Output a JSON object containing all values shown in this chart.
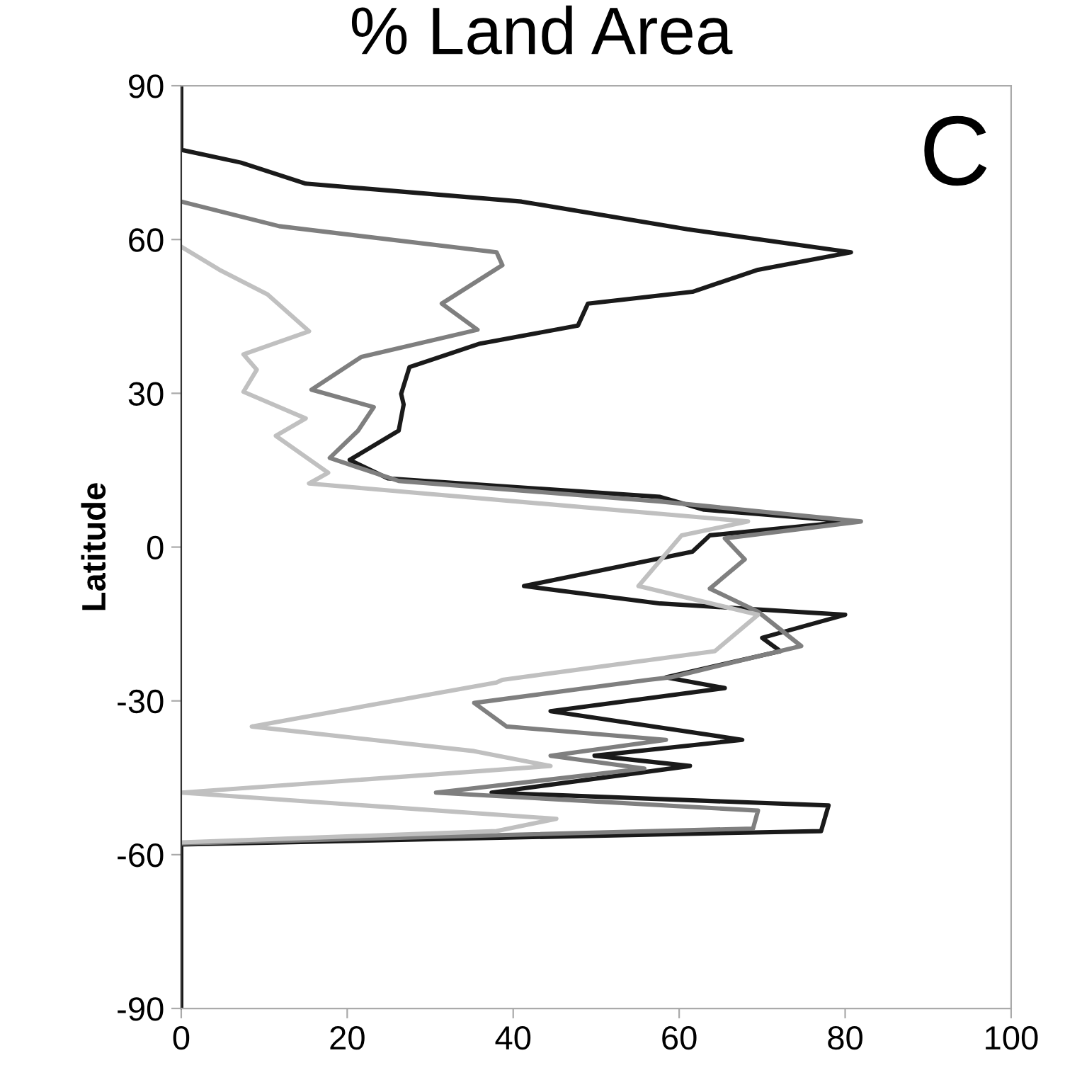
{
  "chart_data": {
    "type": "line",
    "title": "% Land Area",
    "ylabel": "Latitude",
    "annotations": [
      "C"
    ],
    "xlim": [
      0,
      100
    ],
    "xticks": [
      0,
      20,
      40,
      60,
      80,
      100
    ],
    "ylim": [
      -90,
      90
    ],
    "yticks": [
      -90,
      -60,
      -30,
      0,
      30,
      60,
      90
    ],
    "grid": false,
    "marker": "none",
    "line_style": "solid",
    "series": [
      {
        "color": "#1a1a1a",
        "x": [
          0,
          0,
          7.2,
          15,
          41,
          61,
          80.7,
          69.5,
          61.6,
          49,
          47.8,
          36,
          27.5,
          26.5,
          26.8,
          26.2,
          20.3,
          24.9,
          57.7,
          63,
          80.7,
          63.7,
          61.6,
          41.3,
          57.7,
          80,
          70,
          72.2,
          58.4,
          65.5,
          44.5,
          67.6,
          49.8,
          61.3,
          37.4,
          78,
          77.1,
          0,
          0
        ],
        "values": [
          90,
          77.5,
          75,
          70.9,
          67.4,
          62,
          57.5,
          54.1,
          49.8,
          47.5,
          43.2,
          39.7,
          35.1,
          29.9,
          27.8,
          22.7,
          17,
          13.4,
          9.8,
          7.3,
          5,
          2.3,
          -0.9,
          -7.6,
          -11,
          -13.2,
          -17.7,
          -20.3,
          -25.4,
          -27.5,
          -32,
          -37.6,
          -40.7,
          -42.7,
          -47.9,
          -50.4,
          -55.4,
          -58,
          -90
        ]
      },
      {
        "color": "#7f7f7f",
        "x": [
          0,
          11.8,
          38,
          38.7,
          31.4,
          35.7,
          21.7,
          15.7,
          23.2,
          21.3,
          17.9,
          26.2,
          57.7,
          81.9,
          65.5,
          67.9,
          63.7,
          69.5,
          74.7,
          59,
          56.3,
          35.3,
          39.2,
          58.4,
          44.5,
          55.8,
          30.7,
          69.5,
          68.9,
          0
        ],
        "values": [
          67.4,
          62.6,
          57.5,
          55,
          47.5,
          42.4,
          37.1,
          30.7,
          27.3,
          22.7,
          17.4,
          12.9,
          8.9,
          5,
          1.7,
          -2.4,
          -8.1,
          -12.6,
          -19.3,
          -25.4,
          -25.9,
          -30.4,
          -35,
          -37.6,
          -40.7,
          -43.2,
          -47.9,
          -51.4,
          -54.9,
          -57.8
        ]
      },
      {
        "color": "#c0c0c0",
        "x": [
          0,
          4.6,
          10.4,
          15.4,
          7.5,
          9.1,
          7.5,
          15,
          11.4,
          17.7,
          15.4,
          68.3,
          60.3,
          55.1,
          69.5,
          64.3,
          38.7,
          38,
          8.5,
          35.3,
          44.5,
          0,
          45.2,
          38,
          0
        ],
        "values": [
          58.6,
          54.1,
          49.3,
          42.1,
          37.6,
          34.6,
          30.3,
          25.1,
          21.7,
          14.5,
          12.4,
          5,
          2.3,
          -7.6,
          -13.2,
          -20.3,
          -25.9,
          -26.4,
          -35,
          -39.8,
          -42.7,
          -47.9,
          -53,
          -55.4,
          -57.6
        ]
      }
    ]
  }
}
